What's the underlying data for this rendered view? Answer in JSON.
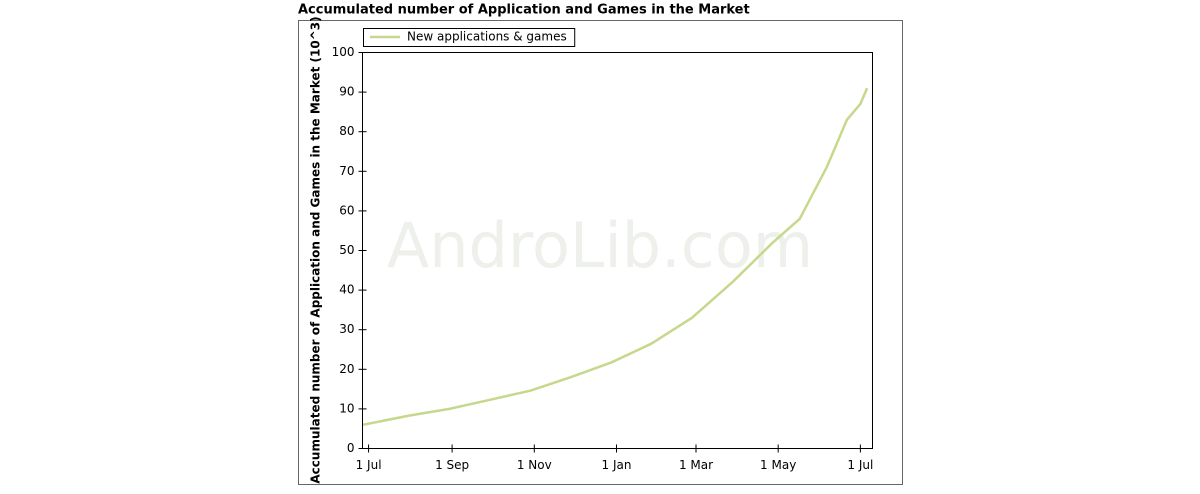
{
  "chart_data": {
    "type": "line",
    "title": "Accumulated number of Application and Games in the Market",
    "y_label": "Accumulated number of Application and Games in the Market (10^3)",
    "watermark": "AndroLib.com",
    "x": [
      -4,
      30,
      60,
      90,
      120,
      150,
      180,
      210,
      240,
      270,
      300,
      320,
      340,
      355,
      365,
      370
    ],
    "series": [
      {
        "name": "New applications & games",
        "color": "#c5d88c",
        "values": [
          6,
          8.3,
          10,
          12.3,
          14.6,
          18,
          21.7,
          26.5,
          33,
          42,
          52,
          58,
          71,
          83,
          87,
          91
        ]
      }
    ],
    "xlim": [
      -4.5,
      374
    ],
    "xticks": [
      {
        "value": 0,
        "label": "1 Jul"
      },
      {
        "value": 62,
        "label": "1 Sep"
      },
      {
        "value": 123,
        "label": "1 Nov"
      },
      {
        "value": 184,
        "label": "1 Jan"
      },
      {
        "value": 243,
        "label": "1 Mar"
      },
      {
        "value": 304,
        "label": "1 May"
      },
      {
        "value": 365,
        "label": "1 Jul"
      }
    ],
    "ylim": [
      0,
      100
    ],
    "yticks": [
      0,
      10,
      20,
      30,
      40,
      50,
      60,
      70,
      80,
      90,
      100
    ],
    "grid": false,
    "legend": "top-left"
  }
}
